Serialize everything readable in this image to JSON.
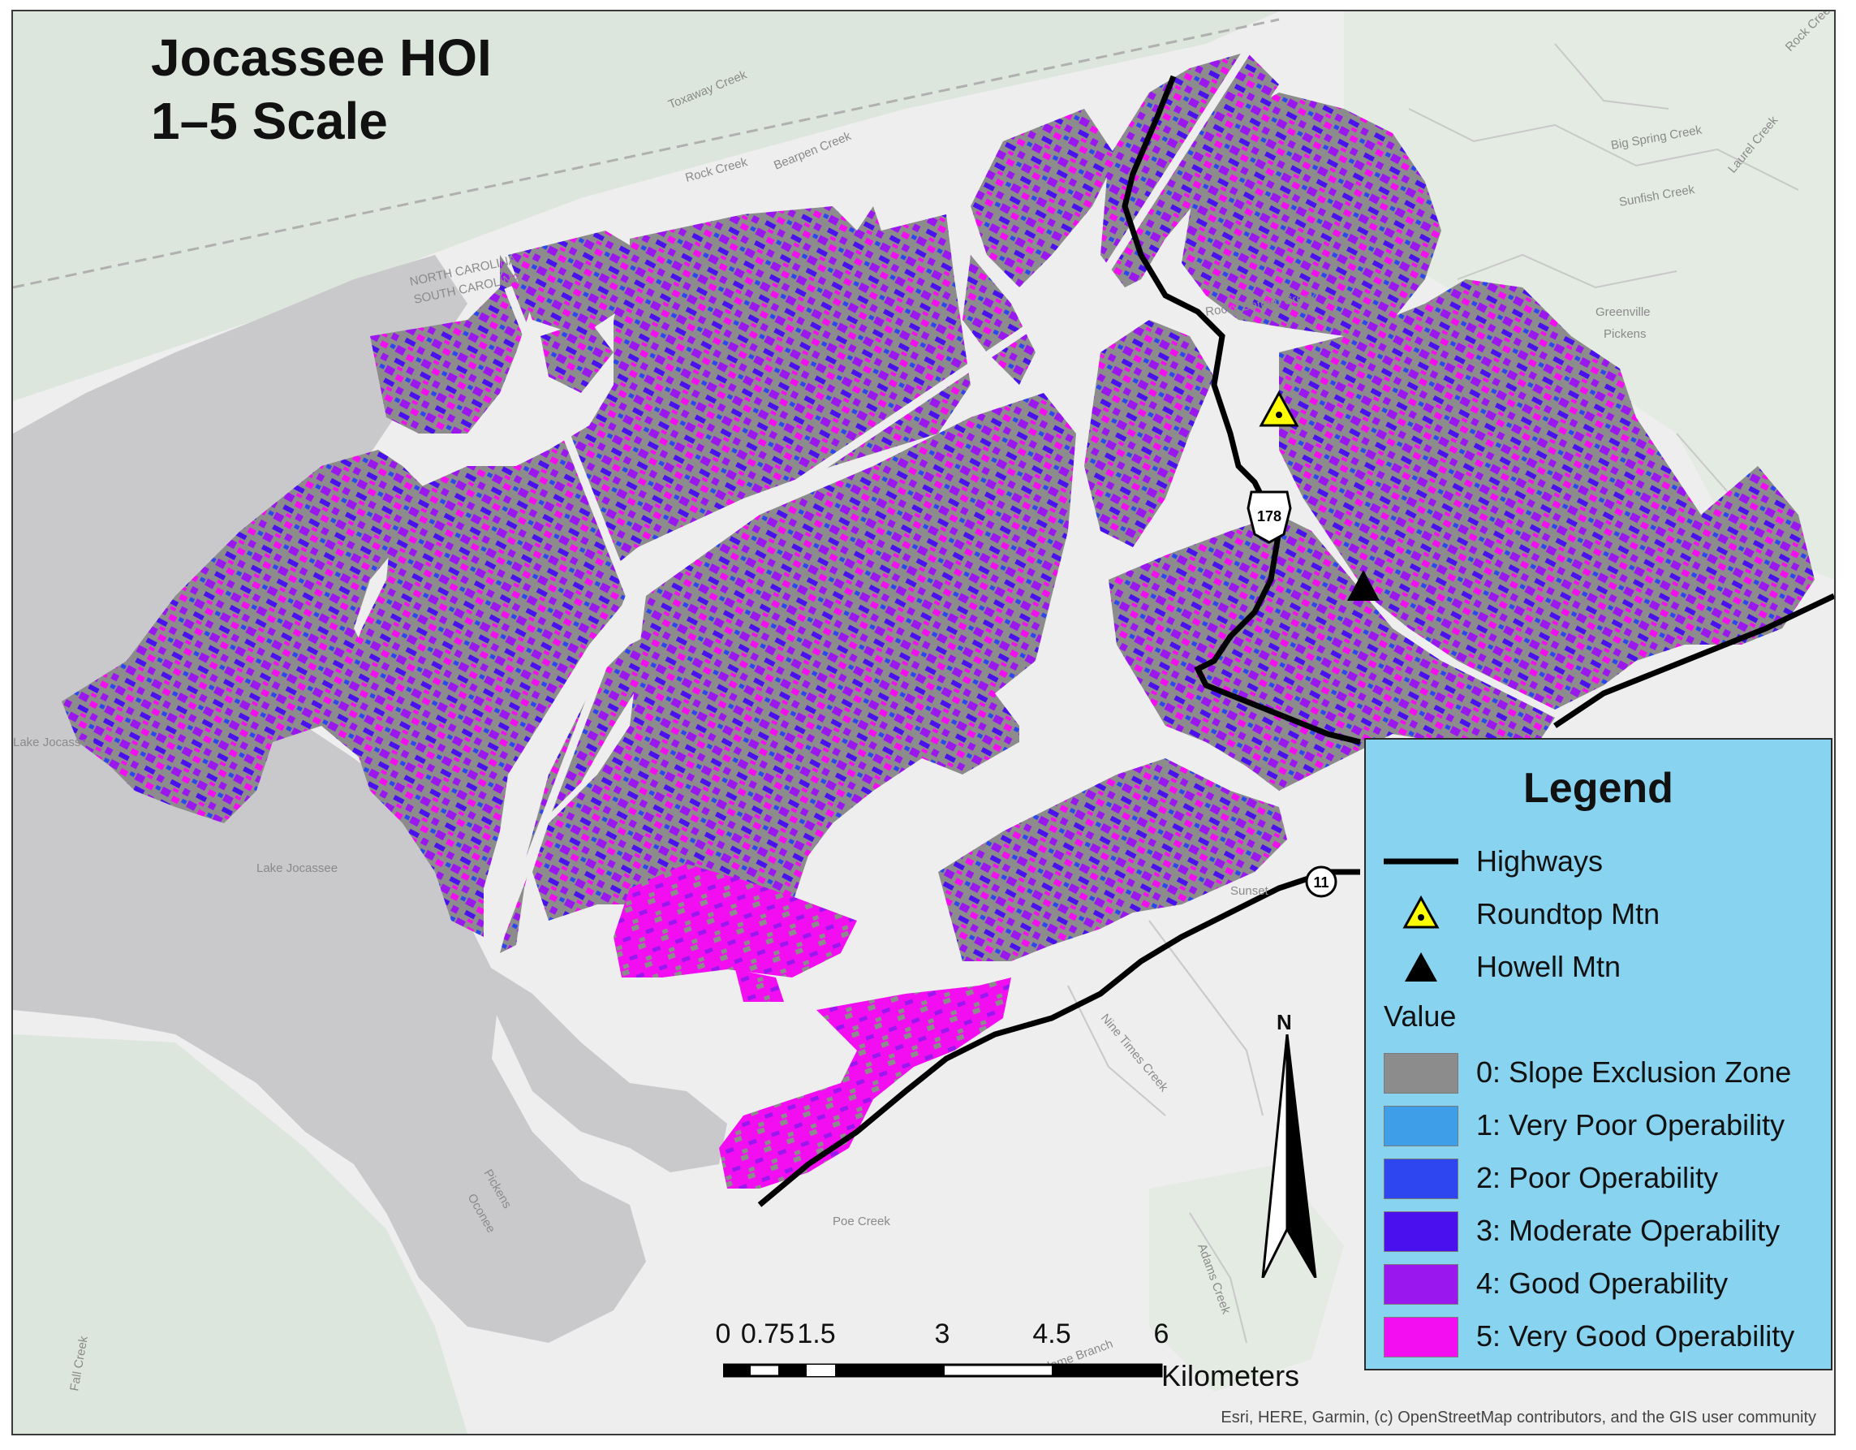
{
  "title_line1": "Jocassee HOI",
  "title_line2": "1–5 Scale",
  "legend": {
    "title": "Legend",
    "items": [
      {
        "label": "Highways",
        "symbol": "highway-line"
      },
      {
        "label": "Roundtop Mtn",
        "symbol": "yellow-triangle-dot"
      },
      {
        "label": "Howell Mtn",
        "symbol": "black-triangle"
      }
    ],
    "value_heading": "Value",
    "classes": [
      {
        "label": "0: Slope Exclusion Zone",
        "color": "#8c8c8c"
      },
      {
        "label": "1: Very Poor Operability",
        "color": "#3f9ee8"
      },
      {
        "label": "2: Poor Operability",
        "color": "#2d46f0"
      },
      {
        "label": "3: Moderate Operability",
        "color": "#4a10ee"
      },
      {
        "label": "4: Good Operability",
        "color": "#9a18ee"
      },
      {
        "label": "5: Very Good Operability",
        "color": "#f20ef0"
      }
    ]
  },
  "scale_bar": {
    "ticks": [
      "0",
      "0.75",
      "1.5",
      "3",
      "4.5",
      "6"
    ],
    "unit": "Kilometers"
  },
  "north_arrow": "N",
  "highway_shields": [
    "178",
    "11"
  ],
  "place_labels": [
    "NORTH CAROLINA",
    "SOUTH CAROLINA",
    "Toxaway Creek",
    "Bearpen Creek",
    "Rock Creek",
    "Big Spring Creek",
    "Laurel Creek",
    "Sunfish Creek",
    "Greenville",
    "Pickens",
    "Rocky Bottom Creek",
    "Lake Jocassee",
    "Lake Jocassee",
    "Pickens",
    "Oconee",
    "Sunset",
    "Nine Times Creek",
    "Poe Creek",
    "Adams Creek",
    "Kalome Branch",
    "Fall Creek",
    "Rock Creek"
  ],
  "attribution": "Esri, HERE, Garmin, (c) OpenStreetMap contributors, and the GIS user community"
}
